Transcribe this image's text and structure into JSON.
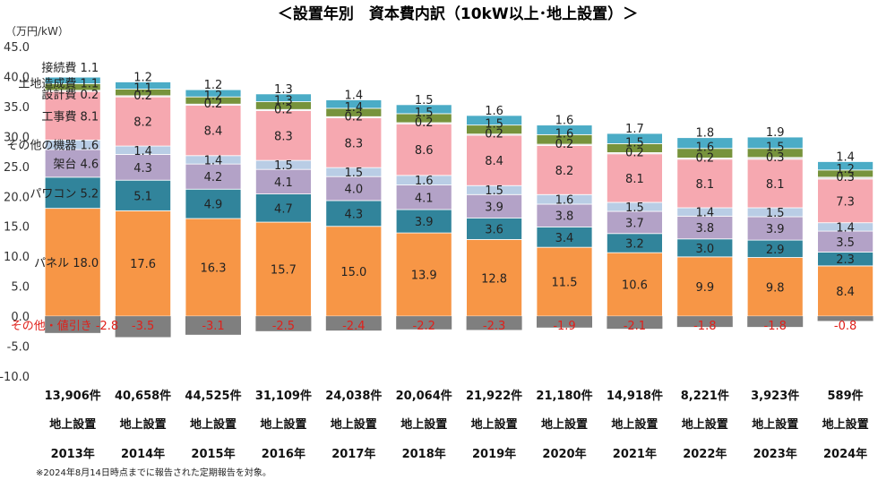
{
  "chart_data": {
    "type": "bar",
    "stacked": true,
    "title": "＜設置年別　資本費内訳（10kW以上･地上設置）＞",
    "unit_label": "（万円/kW）",
    "ylim": [
      -10,
      45
    ],
    "yticks": [
      "45.0",
      "40.0",
      "35.0",
      "30.0",
      "25.0",
      "20.0",
      "15.0",
      "10.0",
      "5.0",
      "0.0",
      "-5.0",
      "-10.0"
    ],
    "ytick_values": [
      45,
      40,
      35,
      30,
      25,
      20,
      15,
      10,
      5,
      0,
      -5,
      -10
    ],
    "grid": false,
    "categories": [
      "2013年",
      "2014年",
      "2015年",
      "2016年",
      "2017年",
      "2018年",
      "2019年",
      "2020年",
      "2021年",
      "2022年",
      "2023年",
      "2024年"
    ],
    "counts": [
      "13,906件",
      "40,658件",
      "44,525件",
      "31,109件",
      "24,038件",
      "20,064件",
      "21,922件",
      "21,180件",
      "14,918件",
      "8,221件",
      "3,923件",
      "589件"
    ],
    "install_type": [
      "地上設置",
      "地上設置",
      "地上設置",
      "地上設置",
      "地上設置",
      "地上設置",
      "地上設置",
      "地上設置",
      "地上設置",
      "地上設置",
      "地上設置",
      "地上設置"
    ],
    "series": [
      {
        "name": "パネル",
        "color": "#f79646",
        "values": [
          18.0,
          17.6,
          16.3,
          15.7,
          15.0,
          13.9,
          12.8,
          11.5,
          10.6,
          9.9,
          9.8,
          8.4
        ],
        "labels": [
          "18.0",
          "17.6",
          "16.3",
          "15.7",
          "15.0",
          "13.9",
          "12.8",
          "11.5",
          "10.6",
          "9.9",
          "9.8",
          "8.4"
        ]
      },
      {
        "name": "パワコン",
        "color": "#31849b",
        "values": [
          5.2,
          5.1,
          4.9,
          4.7,
          4.3,
          3.9,
          3.6,
          3.4,
          3.2,
          3.0,
          2.9,
          2.3
        ],
        "labels": [
          "5.2",
          "5.1",
          "4.9",
          "4.7",
          "4.3",
          "3.9",
          "3.6",
          "3.4",
          "3.2",
          "3.0",
          "2.9",
          "2.3"
        ]
      },
      {
        "name": "架台",
        "color": "#b3a2c7",
        "values": [
          4.6,
          4.3,
          4.2,
          4.1,
          4.0,
          4.1,
          3.9,
          3.8,
          3.7,
          3.8,
          3.9,
          3.5
        ],
        "labels": [
          "4.6",
          "4.3",
          "4.2",
          "4.1",
          "4.0",
          "4.1",
          "3.9",
          "3.8",
          "3.7",
          "3.8",
          "3.9",
          "3.5"
        ]
      },
      {
        "name": "その他の機器",
        "color": "#b9cde5",
        "values": [
          1.6,
          1.4,
          1.4,
          1.5,
          1.5,
          1.6,
          1.5,
          1.6,
          1.5,
          1.4,
          1.5,
          1.4
        ],
        "labels": [
          "1.6",
          "1.4",
          "1.4",
          "1.5",
          "1.5",
          "1.6",
          "1.5",
          "1.6",
          "1.5",
          "1.4",
          "1.5",
          "1.4"
        ]
      },
      {
        "name": "工事費",
        "color": "#f6a8b0",
        "values": [
          8.1,
          8.2,
          8.4,
          8.3,
          8.3,
          8.6,
          8.4,
          8.2,
          8.1,
          8.1,
          8.1,
          7.3
        ],
        "labels": [
          "8.1",
          "8.2",
          "8.4",
          "8.3",
          "8.3",
          "8.6",
          "8.4",
          "8.2",
          "8.1",
          "8.1",
          "8.1",
          "7.3"
        ]
      },
      {
        "name": "設計費",
        "color": "#d9d9d9",
        "values": [
          0.2,
          0.2,
          0.2,
          0.2,
          0.2,
          0.2,
          0.2,
          0.2,
          0.2,
          0.2,
          0.3,
          0.3
        ],
        "labels": [
          "0.2",
          "0.2",
          "0.2",
          "0.2",
          "0.2",
          "0.2",
          "0.2",
          "0.2",
          "0.2",
          "0.2",
          "0.3",
          "0.3"
        ]
      },
      {
        "name": "土地造成費",
        "color": "#77933c",
        "values": [
          1.1,
          1.1,
          1.2,
          1.3,
          1.4,
          1.5,
          1.5,
          1.6,
          1.5,
          1.6,
          1.5,
          1.2
        ],
        "labels": [
          "1.1",
          "1.1",
          "1.2",
          "1.3",
          "1.4",
          "1.5",
          "1.5",
          "1.6",
          "1.5",
          "1.6",
          "1.5",
          "1.2"
        ]
      },
      {
        "name": "接続費",
        "color": "#4bacc6",
        "values": [
          1.1,
          1.2,
          1.2,
          1.3,
          1.4,
          1.5,
          1.6,
          1.6,
          1.7,
          1.8,
          1.9,
          1.4
        ],
        "labels": [
          "1.1",
          "1.2",
          "1.2",
          "1.3",
          "1.4",
          "1.5",
          "1.6",
          "1.6",
          "1.7",
          "1.8",
          "1.9",
          "1.4"
        ]
      },
      {
        "name": "その他・値引き",
        "color": "#7f7f7f",
        "negative": true,
        "values": [
          -2.8,
          -3.5,
          -3.1,
          -2.5,
          -2.4,
          -2.2,
          -2.3,
          -1.9,
          -2.1,
          -1.8,
          -1.8,
          -0.8
        ],
        "labels": [
          "-2.8",
          "-3.5",
          "-3.1",
          "-2.5",
          "-2.4",
          "-2.2",
          "-2.3",
          "-1.9",
          "-2.1",
          "-1.8",
          "-1.8",
          "-0.8"
        ]
      }
    ]
  },
  "footnote": "※2024年8月14日時点までに報告された定期報告を対象。"
}
